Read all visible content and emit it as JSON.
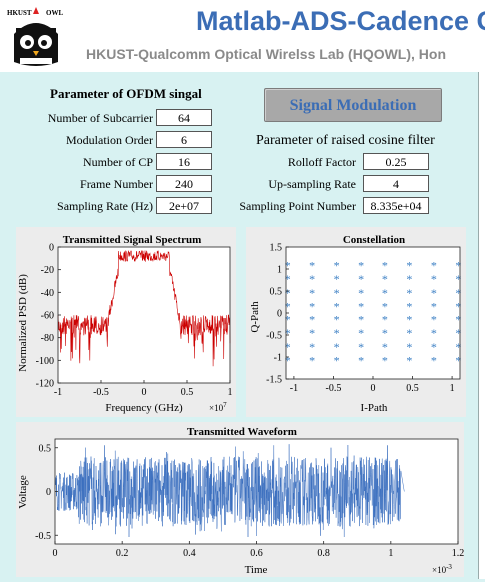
{
  "header": {
    "title": "Matlab-ADS-Cadence C",
    "subtitle": "HKUST-Qualcomm Optical Wirelss Lab (HQOWL),   Hon",
    "logo_text_left": "HKUST",
    "logo_text_right": "OWL"
  },
  "params_ofdm": {
    "title": "Parameter of OFDM singal",
    "rows": [
      {
        "label": "Number of Subcarrier",
        "value": "64"
      },
      {
        "label": "Modulation Order",
        "value": "6"
      },
      {
        "label": "Number of CP",
        "value": "16"
      },
      {
        "label": "Frame Number",
        "value": "240"
      },
      {
        "label": "Sampling Rate (Hz)",
        "value": "2e+07"
      }
    ]
  },
  "signal_button": {
    "label": "Signal Modulation"
  },
  "params_rc": {
    "title": "Parameter of raised cosine filter",
    "rows": [
      {
        "label": "Rolloff Factor",
        "value": "0.25"
      },
      {
        "label": "Up-sampling Rate",
        "value": "4"
      },
      {
        "label": "Sampling Point Number",
        "value": "8.335e+04"
      }
    ]
  },
  "chart_data": [
    {
      "type": "line",
      "title": "Transmitted Signal Spectrum",
      "xlabel": "Frequency (GHz)",
      "ylabel": "Normalized PSD (dB)",
      "x_exponent": "×10",
      "x_exponent_power": "7",
      "xlim": [
        -1,
        1
      ],
      "ylim": [
        -120,
        0
      ],
      "xticks": [
        "-1",
        "-0.5",
        "0",
        "0.5",
        "1"
      ],
      "yticks": [
        "0",
        "-20",
        "-40",
        "-60",
        "-80",
        "-100",
        "-120"
      ],
      "color": "#cc0000",
      "envelope": {
        "inband_level": -3,
        "inband_from": -0.3,
        "inband_to": 0.3,
        "edge_level": -15,
        "outband_level": -60,
        "outband_spread": 18
      }
    },
    {
      "type": "scatter",
      "title": "Constellation",
      "xlabel": "I-Path",
      "ylabel": "Q-Path",
      "xlim": [
        -1.1,
        1.1
      ],
      "ylim": [
        -1.5,
        1.5
      ],
      "xticks": [
        "-1",
        "-0.5",
        "0",
        "0.5",
        "1"
      ],
      "yticks": [
        "1.5",
        "1",
        "0.5",
        "0",
        "-0.5",
        "-1",
        "-1.5"
      ],
      "marker": "*",
      "color": "#3b7fc4",
      "points_grid": [
        -1.08,
        -0.77,
        -0.46,
        -0.15,
        0.15,
        0.46,
        0.77,
        1.08
      ],
      "points_grid_q": [
        1.08,
        0.77,
        0.46,
        0.15,
        -0.15,
        -0.46,
        -0.77,
        -1.08
      ]
    },
    {
      "type": "line",
      "title": "Transmitted Waveform",
      "xlabel": "Time",
      "ylabel": "Voltage",
      "x_exponent": "×10",
      "x_exponent_power": "-3",
      "xlim": [
        0,
        1.2
      ],
      "ylim": [
        -0.6,
        0.6
      ],
      "xticks": [
        "0",
        "0.2",
        "0.4",
        "0.6",
        "0.8",
        "1",
        "1.2"
      ],
      "yticks": [
        "0.5",
        "0",
        "-0.5"
      ],
      "color": "#3b6fbf",
      "signal_end": 1.03,
      "preamble_end": 0.07
    }
  ]
}
